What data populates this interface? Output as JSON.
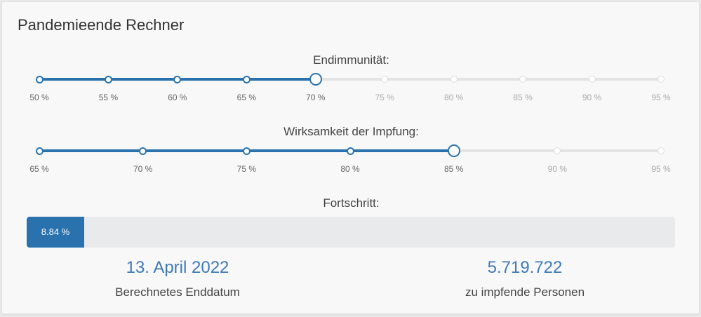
{
  "title": "Pandemieende Rechner",
  "sliders": [
    {
      "label": "Endimmunität:",
      "ticks": [
        "50 %",
        "55 %",
        "60 %",
        "65 %",
        "70 %",
        "75 %",
        "80 %",
        "85 %",
        "90 %",
        "95 %"
      ],
      "selected_index": 4,
      "value": "70 %"
    },
    {
      "label": "Wirksamkeit der Impfung:",
      "ticks": [
        "65 %",
        "70 %",
        "75 %",
        "80 %",
        "85 %",
        "90 %",
        "95 %"
      ],
      "selected_index": 4,
      "value": "85 %"
    }
  ],
  "progress": {
    "label": "Fortschritt:",
    "value_text": "8.84 %",
    "percent": 8.84
  },
  "stats": {
    "end_date": "13. April 2022",
    "end_date_label": "Berechnetes Enddatum",
    "persons": "5.719.722",
    "persons_label": "zu impfende Personen"
  },
  "colors": {
    "accent": "#2a72ad",
    "stat_value": "#3d7ab8"
  }
}
